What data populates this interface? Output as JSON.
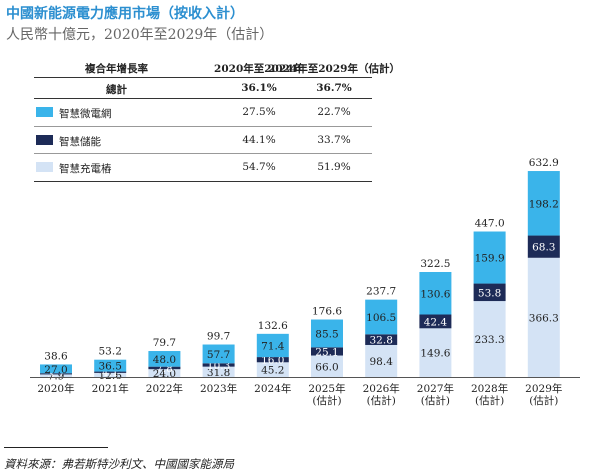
{
  "header": {
    "title": "中國新能源電力應用市場（按收入計）",
    "subtitle": "人民幣十億元，2020年至2029年（估計）"
  },
  "cagr_table": {
    "header": [
      "複合年增長率",
      "2020年至2024年",
      "2024年至2029年（估計）"
    ],
    "total": {
      "label": "總計",
      "v1": "36.1%",
      "v2": "36.7%"
    },
    "rows": [
      {
        "label": "智慧微電網",
        "color": "#3ab4ea",
        "v1": "27.5%",
        "v2": "22.7%"
      },
      {
        "label": "智慧儲能",
        "color": "#1d2b57",
        "v1": "44.1%",
        "v2": "33.7%"
      },
      {
        "label": "智慧充電樁",
        "color": "#d4e3f5",
        "v1": "54.7%",
        "v2": "51.9%"
      }
    ]
  },
  "chart_data": {
    "type": "bar",
    "stacked": true,
    "categories": [
      "2020年",
      "2021年",
      "2022年",
      "2023年",
      "2024年",
      "2025年\n(估計)",
      "2026年\n(估計)",
      "2027年\n(估計)",
      "2028年\n(估計)",
      "2029年\n(估計)"
    ],
    "series": [
      {
        "name": "智慧充電樁",
        "color": "#d4e3f5",
        "values": [
          7.9,
          12.6,
          24.0,
          31.8,
          45.2,
          66.0,
          98.4,
          149.6,
          233.3,
          366.3
        ]
      },
      {
        "name": "智慧儲能",
        "color": "#1d2b57",
        "values": [
          3.7,
          4.1,
          7.8,
          10.3,
          16.0,
          25.1,
          32.8,
          42.4,
          53.8,
          68.3
        ]
      },
      {
        "name": "智慧微電網",
        "color": "#3ab4ea",
        "values": [
          27.0,
          36.5,
          48.0,
          57.7,
          71.4,
          85.5,
          106.5,
          130.6,
          159.9,
          198.2
        ]
      }
    ],
    "totals": [
      38.6,
      53.2,
      79.7,
      99.7,
      132.6,
      176.6,
      237.7,
      322.5,
      447.0,
      632.9
    ],
    "ylim": [
      0,
      632.9
    ]
  },
  "source": "資料來源：弗若斯特沙利文、中國國家能源局"
}
